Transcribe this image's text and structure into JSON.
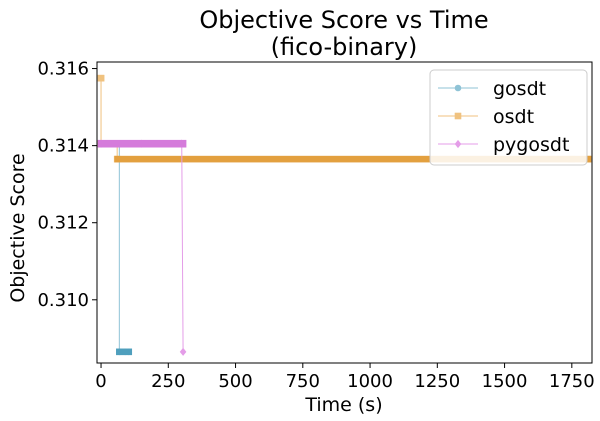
{
  "chart_data": {
    "type": "line",
    "title": "Objective Score vs Time",
    "subtitle": "(fico-binary)",
    "xlabel": "Time (s)",
    "ylabel": "Objective Score",
    "xlim": [
      -15,
      1825
    ],
    "ylim": [
      0.30836,
      0.31617
    ],
    "xticks": [
      0,
      250,
      500,
      750,
      1000,
      1250,
      1500,
      1750
    ],
    "xtick_labels": [
      "0",
      "250",
      "500",
      "750",
      "1000",
      "1250",
      "1500",
      "1750"
    ],
    "yticks": [
      0.31,
      0.312,
      0.314,
      0.316
    ],
    "ytick_labels": [
      "0.310",
      "0.312",
      "0.314",
      "0.316"
    ],
    "grid": false,
    "legend_position": "top-right",
    "series": [
      {
        "name": "gosdt",
        "color": "#8fc3d6",
        "marker": "circle",
        "segments": [
          {
            "x": [
              0,
              68,
              68,
              70,
              90,
              103
            ],
            "y": [
              0.31405,
              0.31405,
              0.30865,
              0.30865,
              0.30865,
              0.30865
            ]
          }
        ],
        "dense_runs": [
          {
            "x_start": 68,
            "x_end": 103,
            "y": 0.30865,
            "color": "#4f9fbd"
          }
        ]
      },
      {
        "name": "osdt",
        "color": "#f0c27f",
        "marker": "square",
        "segments": [
          {
            "x": [
              0,
              0,
              0,
              10
            ],
            "y": [
              0.31575,
              0.31575,
              0.31405,
              0.31405
            ]
          },
          {
            "x": [
              60,
              60,
              1750,
              1810
            ],
            "y": [
              0.31405,
              0.31365,
              0.31365,
              0.31365
            ]
          }
        ],
        "dense_runs": [
          {
            "x_start": 62,
            "x_end": 1810,
            "y": 0.31365,
            "color": "#e3a03f"
          }
        ]
      },
      {
        "name": "pygosdt",
        "color": "#e49de8",
        "marker": "diamond",
        "segments": [
          {
            "x": [
              0,
              150,
              300,
              300,
              305
            ],
            "y": [
              0.31405,
              0.31405,
              0.31405,
              0.31405,
              0.30865
            ]
          }
        ],
        "dense_runs": [
          {
            "x_start": 0,
            "x_end": 305,
            "y": 0.31405,
            "color": "#d57bdb"
          }
        ]
      }
    ]
  }
}
